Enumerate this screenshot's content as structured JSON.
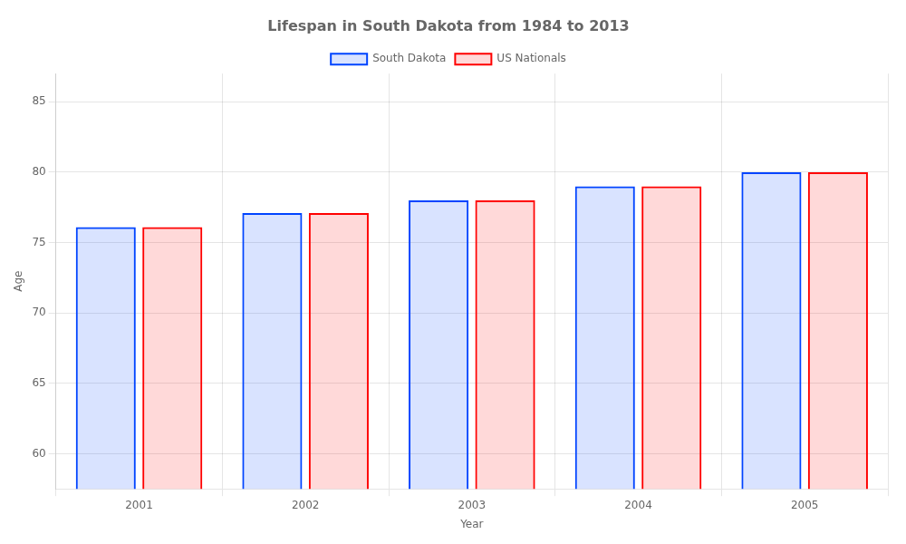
{
  "chart_data": {
    "type": "bar",
    "title": "Lifespan in South Dakota from 1984 to 2013",
    "x_label": "Year",
    "y_label": "Age",
    "categories": [
      "2001",
      "2002",
      "2003",
      "2004",
      "2005"
    ],
    "series": [
      {
        "name": "South Dakota",
        "color": "#0044ff",
        "values": [
          76.1,
          77.1,
          78.0,
          79.0,
          80.0
        ]
      },
      {
        "name": "US Nationals",
        "color": "#ff0000",
        "values": [
          76.1,
          77.1,
          78.0,
          79.0,
          80.0
        ]
      }
    ],
    "ylim": [
      57.5,
      87
    ],
    "yticks": [
      60,
      65,
      70,
      75,
      80,
      85
    ],
    "grid": true,
    "legend": "top"
  }
}
